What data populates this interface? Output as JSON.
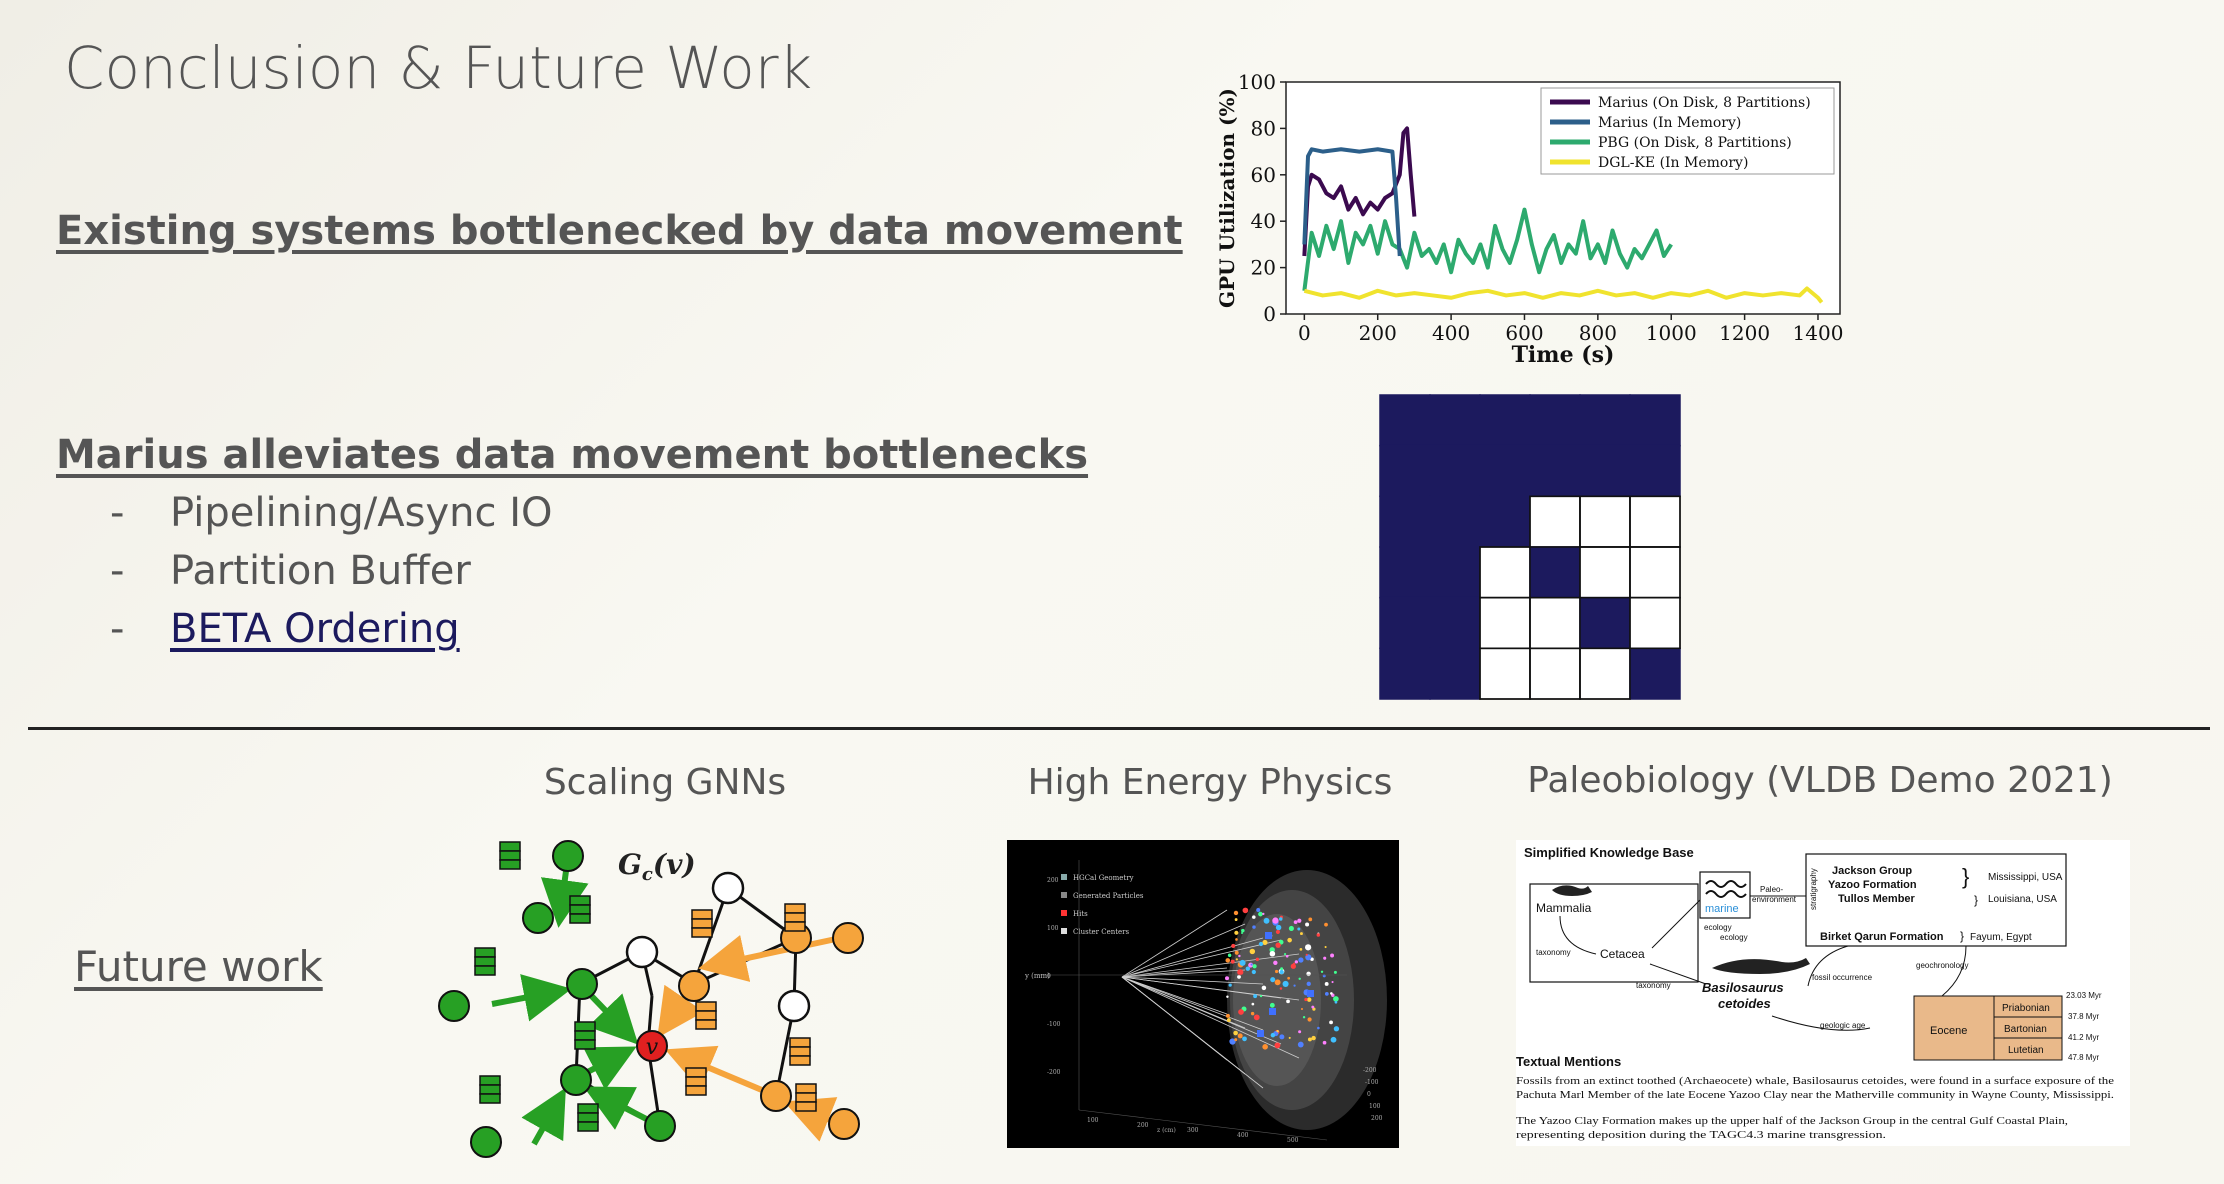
{
  "slide": {
    "title": "Conclusion & Future Work",
    "heading1": "Existing systems bottlenecked by data movement",
    "heading2": "Marius alleviates data movement bottlenecks",
    "bullets": [
      "Pipelining/Async IO",
      "Partition Buffer",
      "BETA Ordering"
    ],
    "future_label": "Future work",
    "captions": {
      "gnn": "Scaling GNNs",
      "hep": "High Energy Physics",
      "paleo": "Paleobiology (VLDB Demo 2021)"
    },
    "gnn_label": "G",
    "gnn_label_sub": "c",
    "gnn_label_arg": "(v)",
    "gnn_center": "v"
  },
  "colors": {
    "accent_navy": "#1c1a5e",
    "text_gray": "#555555",
    "gnn_green": "#27a024",
    "gnn_orange": "#f5a43c",
    "gnn_red": "#e12020"
  },
  "chart_data": {
    "type": "line",
    "xlabel": "Time (s)",
    "ylabel": "GPU Utilization (%)",
    "xlim": [
      -50,
      1460
    ],
    "ylim": [
      0,
      100
    ],
    "xticks": [
      0,
      200,
      400,
      600,
      800,
      1000,
      1200,
      1400
    ],
    "yticks": [
      0,
      20,
      40,
      60,
      80,
      100
    ],
    "legend_position": "top-right",
    "series": [
      {
        "name": "Marius (On Disk, 8 Partitions)",
        "color": "#3b0a4f",
        "x": [
          0,
          10,
          20,
          40,
          60,
          80,
          100,
          120,
          140,
          160,
          180,
          200,
          220,
          240,
          260,
          270,
          280,
          290,
          300
        ],
        "y": [
          25,
          55,
          60,
          58,
          52,
          50,
          55,
          45,
          50,
          43,
          48,
          45,
          50,
          52,
          60,
          78,
          80,
          60,
          42
        ]
      },
      {
        "name": "Marius (In Memory)",
        "color": "#2c5f8a",
        "x": [
          0,
          10,
          20,
          50,
          100,
          150,
          200,
          240,
          250,
          260
        ],
        "y": [
          30,
          68,
          71,
          70,
          71,
          70,
          71,
          70,
          50,
          25
        ]
      },
      {
        "name": "PBG (On Disk, 8 Partitions)",
        "color": "#2daa6e",
        "x": [
          0,
          20,
          40,
          60,
          80,
          100,
          120,
          140,
          160,
          180,
          200,
          220,
          240,
          260,
          280,
          300,
          320,
          340,
          360,
          380,
          400,
          420,
          440,
          460,
          480,
          500,
          520,
          540,
          560,
          580,
          600,
          620,
          640,
          660,
          680,
          700,
          720,
          740,
          760,
          780,
          800,
          820,
          840,
          860,
          880,
          900,
          920,
          940,
          960,
          980,
          1000
        ],
        "y": [
          10,
          35,
          25,
          38,
          28,
          40,
          22,
          35,
          30,
          38,
          26,
          40,
          30,
          28,
          20,
          35,
          25,
          28,
          22,
          30,
          18,
          32,
          26,
          22,
          30,
          20,
          38,
          28,
          22,
          32,
          45,
          30,
          18,
          28,
          34,
          22,
          30,
          26,
          40,
          24,
          30,
          22,
          36,
          26,
          20,
          28,
          24,
          30,
          36,
          25,
          30
        ]
      },
      {
        "name": "DGL-KE (In Memory)",
        "color": "#f0e32e",
        "x": [
          0,
          50,
          100,
          150,
          200,
          250,
          300,
          350,
          400,
          450,
          500,
          550,
          600,
          650,
          700,
          750,
          800,
          850,
          900,
          950,
          1000,
          1050,
          1100,
          1150,
          1200,
          1250,
          1300,
          1350,
          1370,
          1400,
          1410
        ],
        "y": [
          10,
          8,
          9,
          7,
          10,
          8,
          9,
          8,
          7,
          9,
          10,
          8,
          9,
          7,
          9,
          8,
          10,
          8,
          9,
          7,
          9,
          8,
          10,
          7,
          9,
          8,
          9,
          8,
          11,
          7,
          5
        ]
      }
    ]
  },
  "matrix": {
    "rows": 6,
    "cols": 6,
    "cells": [
      [
        1,
        1,
        1,
        1,
        1,
        1
      ],
      [
        1,
        1,
        1,
        1,
        1,
        1
      ],
      [
        1,
        1,
        1,
        0,
        0,
        0
      ],
      [
        1,
        1,
        0,
        1,
        0,
        0
      ],
      [
        1,
        1,
        0,
        0,
        1,
        0
      ],
      [
        1,
        1,
        0,
        0,
        0,
        1
      ]
    ]
  },
  "hep": {
    "legend": [
      "HGCal Geometry",
      "Generated Particles",
      "Hits",
      "Cluster Centers"
    ],
    "axis_label": "y (mm)",
    "y_ticks": [
      "200",
      "100",
      "0",
      "-100",
      "-200"
    ],
    "x_ticks": [
      "100",
      "200",
      "300",
      "400",
      "500"
    ],
    "z_label": "z (cm)",
    "right_ticks": [
      "-200",
      "-100",
      "0",
      "100",
      "200"
    ]
  },
  "paleo": {
    "kb_title": "Simplified Knowledge Base",
    "nodes": {
      "mammalia": "Mammalia",
      "cetacea": "Cetacea",
      "marine": "marine",
      "jackson_group": "Jackson Group",
      "yazoo_formation": "Yazoo Formation",
      "tullos_member": "Tullos Member",
      "mississippi": "Mississippi, USA",
      "louisiana": "Louisiana, USA",
      "birket": "Birket Qarun Formation",
      "fayum": "Fayum, Egypt",
      "basilosaurus": "Basilosaurus",
      "cetoides": "cetoides",
      "eocene": "Eocene",
      "priabonian": "Priabonian",
      "bartonian": "Bartonian",
      "lutetian": "Lutetian"
    },
    "edges": {
      "taxonomy1": "taxonomy",
      "taxonomy2": "taxonomy",
      "ecology1": "ecology",
      "ecology2": "ecology",
      "paleo_env_1": "Paleo-",
      "paleo_env_2": "environment",
      "stratigraphy": "stratigraphy",
      "fossil_occurrence": "fossil occurrence",
      "geochronology": "geochronology",
      "geologic_age": "geologic age"
    },
    "ages": [
      "23.03 Myr",
      "37.8 Myr",
      "41.2 Myr",
      "47.8 Myr"
    ],
    "textual_title": "Textual Mentions",
    "mention1_l1": "Fossils from an extinct toothed (Archaeocete) whale, Basilosaurus cetoides, were found in a surface exposure of the",
    "mention1_l2": "Pachuta Marl Member of the late Eocene Yazoo Clay near the Matherville community in Wayne County, Mississippi.",
    "mention2_l1": "The Yazoo Clay Formation makes up the upper half of the Jackson Group in the central Gulf Coastal Plain,",
    "mention2_l2": "representing deposition during the TAGC4.3 marine transgression."
  }
}
